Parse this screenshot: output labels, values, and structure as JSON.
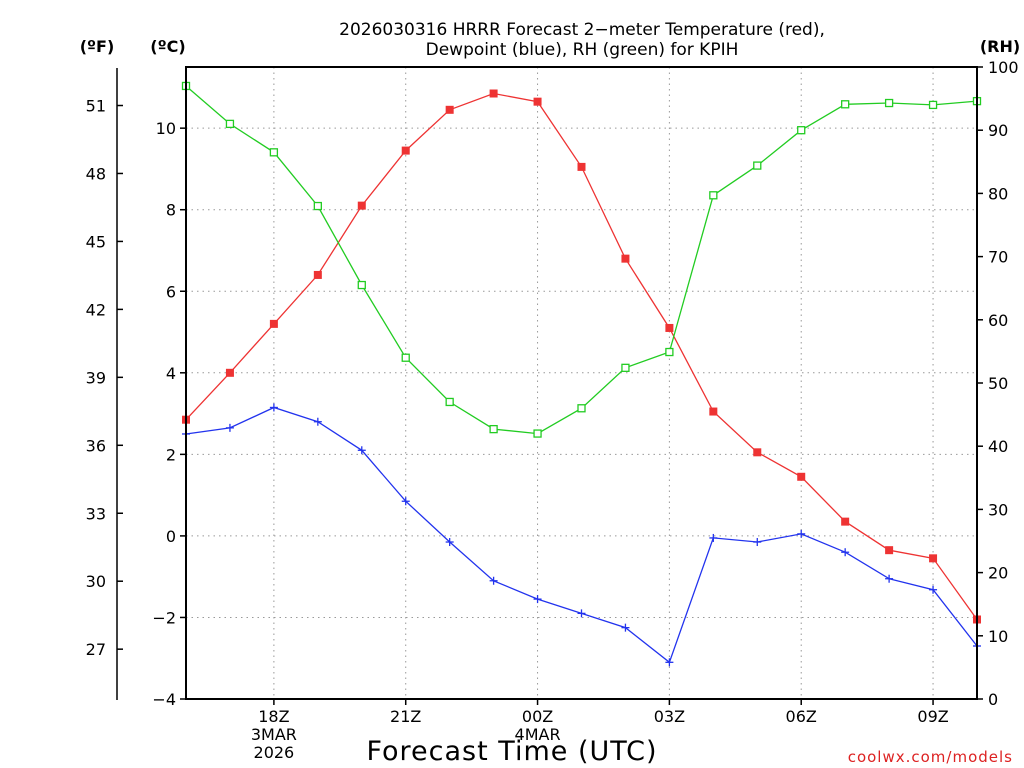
{
  "colors": {
    "temperature": "#ee3333",
    "dewpoint": "#2233ee",
    "rh": "#22cc22",
    "grid": "#999999",
    "credit": "#dd2222"
  },
  "chart_data": {
    "type": "line",
    "title_line1": "2026030316 HRRR Forecast 2−meter Temperature (red),",
    "title_line2": "Dewpoint (blue), RH (green) for KPIH",
    "xlabel": "Forecast Time (UTC)",
    "credit": "coolwx.com/models",
    "unit_f": "(ºF)",
    "unit_c": "(ºC)",
    "unit_rh": "(RH)",
    "x_hours": [
      16,
      17,
      18,
      19,
      20,
      21,
      22,
      23,
      24,
      25,
      26,
      27,
      28,
      29,
      30,
      31,
      32,
      33,
      34
    ],
    "xlim": [
      16,
      34
    ],
    "ylim_c": [
      -4.0,
      11.5
    ],
    "ylim_rh": [
      0,
      100
    ],
    "x_ticks": [
      {
        "hour": 18,
        "labels": [
          "18Z",
          "3MAR",
          "2026"
        ]
      },
      {
        "hour": 21,
        "labels": [
          "21Z"
        ]
      },
      {
        "hour": 24,
        "labels": [
          "00Z",
          "4MAR"
        ]
      },
      {
        "hour": 27,
        "labels": [
          "03Z"
        ]
      },
      {
        "hour": 30,
        "labels": [
          "06Z"
        ]
      },
      {
        "hour": 33,
        "labels": [
          "09Z"
        ]
      }
    ],
    "c_ticks": [
      -4,
      -2,
      0,
      2,
      4,
      6,
      8,
      10
    ],
    "c_tick_labels": [
      "−4",
      "−2",
      "0",
      "2",
      "4",
      "6",
      "8",
      "10"
    ],
    "f_ticks": [
      27,
      30,
      33,
      36,
      39,
      42,
      45,
      48,
      51
    ],
    "f_tick_labels": [
      "27",
      "30",
      "33",
      "36",
      "39",
      "42",
      "45",
      "48",
      "51"
    ],
    "rh_ticks": [
      0,
      10,
      20,
      30,
      40,
      50,
      60,
      70,
      80,
      90,
      100
    ],
    "rh_tick_labels": [
      "0",
      "10",
      "20",
      "30",
      "40",
      "50",
      "60",
      "70",
      "80",
      "90",
      "100"
    ],
    "series": [
      {
        "name": "Temperature",
        "unit": "C",
        "color_key": "temperature",
        "marker": "square-filled",
        "values": [
          2.85,
          4.0,
          5.2,
          6.4,
          8.1,
          9.45,
          10.45,
          10.85,
          10.65,
          9.05,
          6.8,
          5.1,
          3.05,
          2.05,
          1.45,
          0.35,
          -0.35,
          -0.55,
          -2.05
        ]
      },
      {
        "name": "Dewpoint",
        "unit": "C",
        "color_key": "dewpoint",
        "marker": "plus",
        "values": [
          2.5,
          2.65,
          3.15,
          2.8,
          2.1,
          0.85,
          -0.15,
          -1.1,
          -1.55,
          -1.9,
          -2.25,
          -3.1,
          -0.05,
          -0.15,
          0.05,
          -0.4,
          -1.05,
          -1.32,
          -2.7
        ]
      },
      {
        "name": "RH",
        "unit": "%",
        "color_key": "rh",
        "marker": "square-open",
        "values": [
          97,
          91,
          86.5,
          78,
          65.5,
          54,
          47,
          42.7,
          42,
          46,
          52.4,
          54.9,
          79.7,
          84.4,
          90,
          94.1,
          94.3,
          94,
          94.6
        ]
      }
    ]
  }
}
